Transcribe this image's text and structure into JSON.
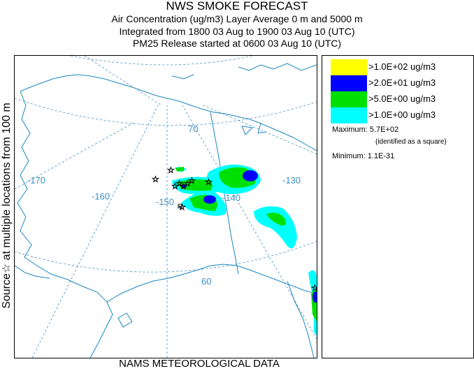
{
  "header": {
    "title": "NWS SMOKE FORECAST",
    "line1": "Air Concentration (ug/m3) Layer Average    0 m and  5000 m",
    "line2": "Integrated from 1800 03 Aug to 1900 03 Aug 10 (UTC)",
    "line3": "PM25 Release started at 0600 03 Aug 10 (UTC)"
  },
  "side_label": "Source☆ at multiple locations from 100 m",
  "footer": "NAMS METEOROLOGICAL DATA",
  "map": {
    "labels": [
      "-170",
      "-160",
      "-150",
      "-140",
      "-130",
      "70",
      "60"
    ],
    "colors": {
      "coast": "#1a86bf",
      "grid": "#3c8fc4",
      "cyan": "#00ffff",
      "green": "#00e000",
      "blue": "#0000ff",
      "yellow": "#ffff00"
    }
  },
  "legend": {
    "items": [
      {
        "label": ">1.0E+02 ug/m3",
        "color": "#ffff00"
      },
      {
        "label": ">2.0E+01 ug/m3",
        "color": "#0000ff"
      },
      {
        "label": ">5.0E+00 ug/m3",
        "color": "#00e000"
      },
      {
        "label": ">1.0E+00 ug/m3",
        "color": "#00ffff"
      }
    ],
    "maximum_label": "Maximum:",
    "maximum_value": "5.7E+02",
    "maximum_note": "(identified as a square)",
    "minimum_label": "Minimum:",
    "minimum_value": "1.1E-31"
  }
}
